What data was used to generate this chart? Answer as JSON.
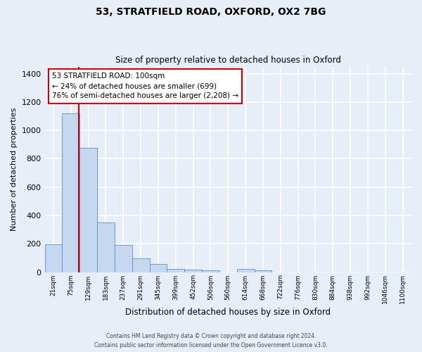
{
  "title1": "53, STRATFIELD ROAD, OXFORD, OX2 7BG",
  "title2": "Size of property relative to detached houses in Oxford",
  "xlabel": "Distribution of detached houses by size in Oxford",
  "ylabel": "Number of detached properties",
  "bar_labels": [
    "21sqm",
    "75sqm",
    "129sqm",
    "183sqm",
    "237sqm",
    "291sqm",
    "345sqm",
    "399sqm",
    "452sqm",
    "506sqm",
    "560sqm",
    "614sqm",
    "668sqm",
    "722sqm",
    "776sqm",
    "830sqm",
    "884sqm",
    "938sqm",
    "992sqm",
    "1046sqm",
    "1100sqm"
  ],
  "bar_heights": [
    195,
    1120,
    875,
    350,
    193,
    97,
    55,
    22,
    18,
    15,
    0,
    22,
    13,
    0,
    0,
    0,
    0,
    0,
    0,
    0,
    0
  ],
  "bar_color": "#c5d8f0",
  "bar_edge_color": "#5a90c8",
  "ylim": [
    0,
    1450
  ],
  "yticks": [
    0,
    200,
    400,
    600,
    800,
    1000,
    1200,
    1400
  ],
  "annotation_text": "53 STRATFIELD ROAD: 100sqm\n← 24% of detached houses are smaller (699)\n76% of semi-detached houses are larger (2,208) →",
  "annotation_box_color": "#ffffff",
  "annotation_box_edge": "#cc0000",
  "footer1": "Contains HM Land Registry data © Crown copyright and database right 2024.",
  "footer2": "Contains public sector information licensed under the Open Government Licence v3.0.",
  "bg_color": "#e8eef8",
  "grid_color": "#ffffff",
  "property_line_color": "#cc0000"
}
